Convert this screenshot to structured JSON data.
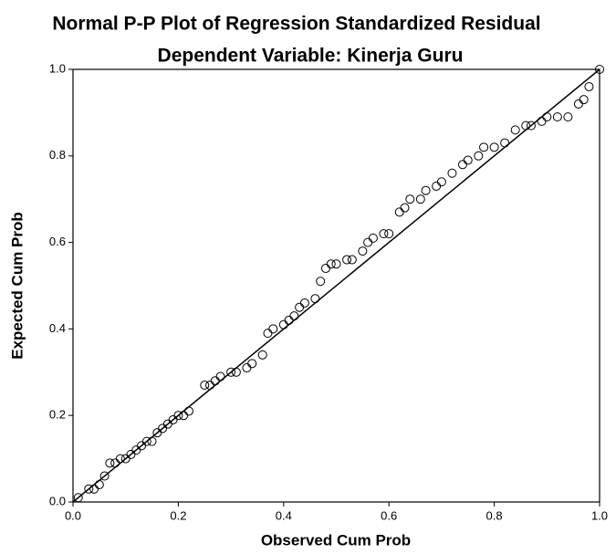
{
  "chart_data": {
    "type": "scatter",
    "title": "Normal P-P Plot of Regression Standardized Residual",
    "subtitle": "Dependent Variable: Kinerja Guru",
    "x_label": "Observed Cum Prob",
    "y_label": "Expected Cum Prob",
    "xlim": [
      0,
      1
    ],
    "ylim": [
      0,
      1
    ],
    "xticks": [
      {
        "value": 0,
        "label": "0.0"
      },
      0.2,
      0.4,
      0.6,
      0.8,
      {
        "value": 1,
        "label": "1.0"
      }
    ],
    "yticks": [
      {
        "value": 0,
        "label": "0.0"
      },
      0.2,
      0.4,
      0.6,
      0.8,
      {
        "value": 1,
        "label": "1.0"
      }
    ],
    "color": "#000000",
    "x": [
      0.01,
      0.03,
      0.04,
      0.05,
      0.06,
      0.07,
      0.08,
      0.09,
      0.1,
      0.11,
      0.12,
      0.13,
      0.14,
      0.15,
      0.16,
      0.17,
      0.18,
      0.19,
      0.2,
      0.21,
      0.22,
      0.25,
      0.26,
      0.27,
      0.28,
      0.3,
      0.31,
      0.33,
      0.34,
      0.36,
      0.37,
      0.38,
      0.4,
      0.41,
      0.42,
      0.43,
      0.44,
      0.46,
      0.47,
      0.48,
      0.49,
      0.5,
      0.52,
      0.53,
      0.55,
      0.56,
      0.57,
      0.59,
      0.6,
      0.62,
      0.63,
      0.64,
      0.66,
      0.67,
      0.69,
      0.7,
      0.72,
      0.74,
      0.75,
      0.77,
      0.78,
      0.8,
      0.82,
      0.84,
      0.86,
      0.87,
      0.89,
      0.9,
      0.92,
      0.94,
      0.96,
      0.97,
      0.98,
      1
    ],
    "values": [
      0.01,
      0.03,
      0.03,
      0.04,
      0.06,
      0.09,
      0.09,
      0.1,
      0.1,
      0.11,
      0.12,
      0.13,
      0.14,
      0.14,
      0.16,
      0.17,
      0.18,
      0.19,
      0.2,
      0.2,
      0.21,
      0.27,
      0.27,
      0.28,
      0.29,
      0.3,
      0.3,
      0.31,
      0.32,
      0.34,
      0.39,
      0.4,
      0.41,
      0.42,
      0.43,
      0.45,
      0.46,
      0.47,
      0.51,
      0.54,
      0.55,
      0.55,
      0.56,
      0.56,
      0.58,
      0.6,
      0.61,
      0.62,
      0.62,
      0.67,
      0.68,
      0.7,
      0.7,
      0.72,
      0.73,
      0.74,
      0.76,
      0.78,
      0.79,
      0.8,
      0.82,
      0.82,
      0.83,
      0.86,
      0.87,
      0.87,
      0.88,
      0.89,
      0.89,
      0.89,
      0.92,
      0.93,
      0.96,
      1
    ]
  }
}
